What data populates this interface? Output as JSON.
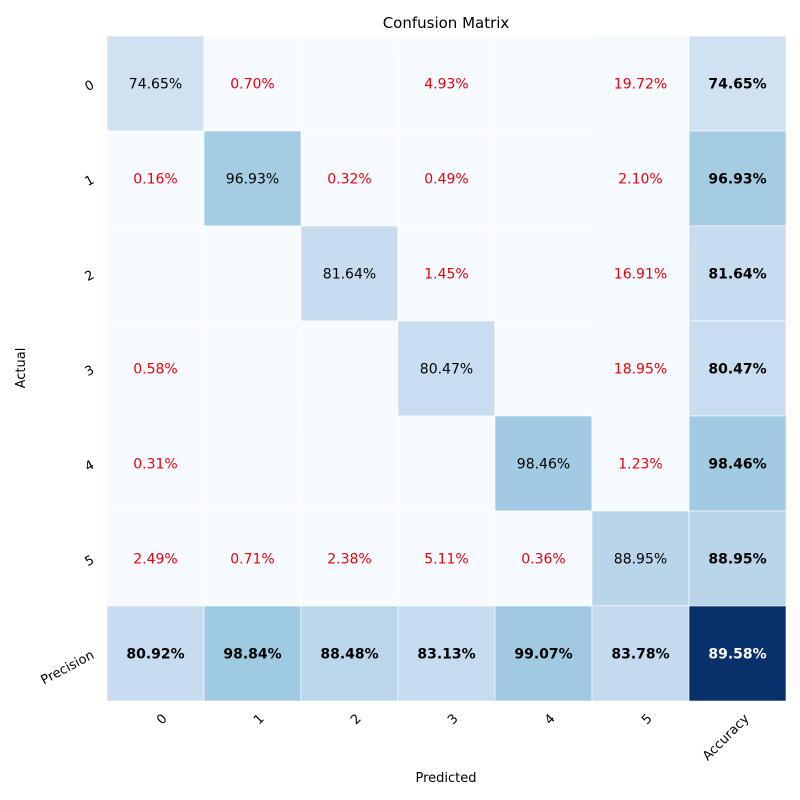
{
  "chart_data": {
    "type": "heatmap",
    "title": "Confusion Matrix",
    "xlabel": "Predicted",
    "ylabel": "Actual",
    "x_categories": [
      "0",
      "1",
      "2",
      "3",
      "4",
      "5",
      "Accuracy"
    ],
    "y_categories": [
      "0",
      "1",
      "2",
      "3",
      "4",
      "5",
      "Precision"
    ],
    "cells": [
      [
        "74.65%",
        "0.70%",
        "",
        "4.93%",
        "",
        "19.72%",
        "74.65%"
      ],
      [
        "0.16%",
        "96.93%",
        "0.32%",
        "0.49%",
        "",
        "2.10%",
        "96.93%"
      ],
      [
        "",
        "",
        "81.64%",
        "1.45%",
        "",
        "16.91%",
        "81.64%"
      ],
      [
        "0.58%",
        "",
        "",
        "80.47%",
        "",
        "18.95%",
        "80.47%"
      ],
      [
        "0.31%",
        "",
        "",
        "",
        "98.46%",
        "1.23%",
        "98.46%"
      ],
      [
        "2.49%",
        "0.71%",
        "2.38%",
        "5.11%",
        "0.36%",
        "88.95%",
        "88.95%"
      ],
      [
        "80.92%",
        "98.84%",
        "88.48%",
        "83.13%",
        "99.07%",
        "83.78%",
        "89.58%"
      ]
    ],
    "values": [
      [
        74.65,
        0.7,
        0,
        4.93,
        0,
        19.72,
        74.65
      ],
      [
        0.16,
        96.93,
        0.32,
        0.49,
        0,
        2.1,
        96.93
      ],
      [
        0,
        0,
        81.64,
        1.45,
        0,
        16.91,
        81.64
      ],
      [
        0.58,
        0,
        0,
        80.47,
        0,
        18.95,
        80.47
      ],
      [
        0.31,
        0,
        0,
        0,
        98.46,
        1.23,
        98.46
      ],
      [
        2.49,
        0.71,
        2.38,
        5.11,
        0.36,
        88.95,
        88.95
      ],
      [
        80.92,
        98.84,
        88.48,
        83.13,
        99.07,
        83.78,
        89.58
      ]
    ],
    "colormap": "Blues",
    "colors": {
      "off_diagonal_text": "#e8000b",
      "diagonal_text": "#000000",
      "summary_text": "#000000",
      "cell_border": "#ffffff"
    },
    "grid": false,
    "legend": "none"
  }
}
